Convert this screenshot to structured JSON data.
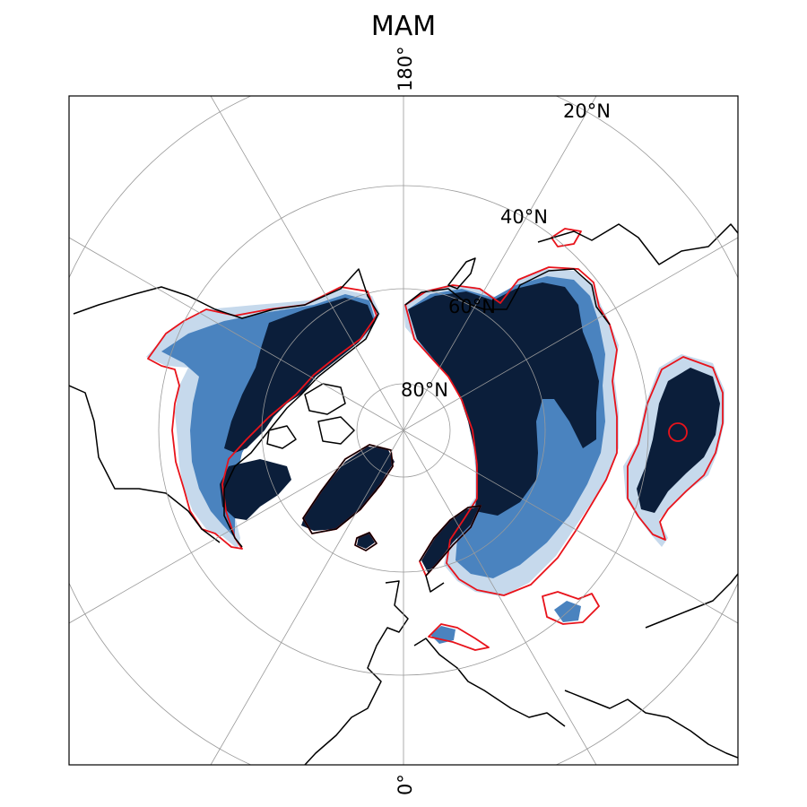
{
  "title": "MAM",
  "projection": "north-polar-stereographic",
  "lon_labels": {
    "top": "180°",
    "bottom": "0°"
  },
  "lat_labels": [
    "20°N",
    "40°N",
    "60°N",
    "80°N"
  ],
  "colors": {
    "level_1": "#c6d9ec",
    "level_2": "#8db4dc",
    "level_3": "#4a83bf",
    "level_4": "#2a5a97",
    "level_5": "#0b1e3a",
    "contour": "#e8131b",
    "coastline": "#000000",
    "gridline": "#9a9a9a"
  }
}
